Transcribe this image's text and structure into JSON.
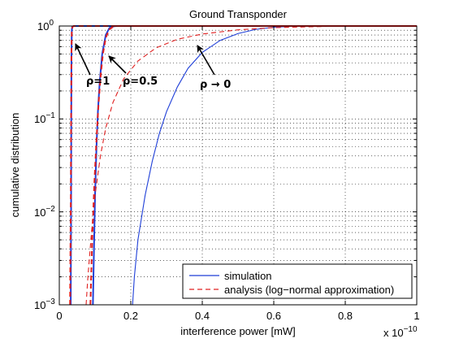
{
  "chart_data": {
    "type": "line",
    "title": "Ground Transponder",
    "xlabel": "interference power [mW]",
    "ylabel": "cumulative distribution",
    "x_multiplier_label": "x 10",
    "x_multiplier_exponent": "−10",
    "xlim": [
      0,
      1
    ],
    "ylim": [
      0.001,
      1
    ],
    "y_scale": "log",
    "grid": true,
    "legend_position": "bottom-right",
    "x_ticks": [
      "0",
      "0.2",
      "0.4",
      "0.6",
      "0.8",
      "1"
    ],
    "y_ticks": [
      {
        "base": "10",
        "exp": "0"
      },
      {
        "base": "10",
        "exp": "−1"
      },
      {
        "base": "10",
        "exp": "−2"
      },
      {
        "base": "10",
        "exp": "−3"
      }
    ],
    "series": [
      {
        "name": "simulation",
        "color": "#1f3fd8",
        "style": "solid",
        "curves": [
          {
            "x": [
              0.032,
              0.033,
              0.0335,
              0.034,
              0.035,
              0.036,
              0.04,
              0.06
            ],
            "y": [
              0.001,
              0.01,
              0.1,
              0.5,
              0.9,
              0.98,
              0.999,
              1.0
            ]
          },
          {
            "x": [
              0.094,
              0.097,
              0.1,
              0.104,
              0.108,
              0.113,
              0.12,
              0.13,
              0.14,
              0.15,
              0.16
            ],
            "y": [
              0.001,
              0.004,
              0.015,
              0.05,
              0.12,
              0.25,
              0.5,
              0.8,
              0.95,
              0.99,
              1.0
            ]
          },
          {
            "x": [
              0.205,
              0.21,
              0.22,
              0.24,
              0.26,
              0.28,
              0.3,
              0.33,
              0.36,
              0.4,
              0.45,
              0.5,
              0.55,
              0.6,
              0.65,
              0.7
            ],
            "y": [
              0.001,
              0.002,
              0.005,
              0.015,
              0.035,
              0.07,
              0.12,
              0.22,
              0.35,
              0.52,
              0.7,
              0.83,
              0.92,
              0.97,
              0.99,
              1.0
            ]
          }
        ]
      },
      {
        "name": "analysis (log−normal approximation)",
        "color": "#e02020",
        "style": "dashed",
        "curves": [
          {
            "x": [
              0.03,
              0.032,
              0.033,
              0.034,
              0.035,
              0.037,
              0.04,
              0.05
            ],
            "y": [
              0.001,
              0.01,
              0.1,
              0.5,
              0.9,
              0.98,
              0.999,
              1.0
            ]
          },
          {
            "x": [
              0.087,
              0.092,
              0.098,
              0.104,
              0.11,
              0.116,
              0.122,
              0.13,
              0.14,
              0.15,
              0.16
            ],
            "y": [
              0.001,
              0.005,
              0.02,
              0.06,
              0.15,
              0.3,
              0.5,
              0.75,
              0.92,
              0.98,
              1.0
            ]
          },
          {
            "x": [
              0.075,
              0.08,
              0.09,
              0.1,
              0.115,
              0.13,
              0.15,
              0.18,
              0.22,
              0.27,
              0.33,
              0.4,
              0.5,
              0.6,
              0.75,
              0.9,
              1.0
            ],
            "y": [
              0.001,
              0.002,
              0.006,
              0.015,
              0.04,
              0.08,
              0.15,
              0.27,
              0.42,
              0.58,
              0.72,
              0.82,
              0.91,
              0.96,
              0.99,
              0.998,
              1.0
            ]
          }
        ]
      }
    ],
    "annotations": [
      {
        "text": "ρ=1",
        "arrow_to": [
          0.04,
          0.97
        ]
      },
      {
        "text": "ρ=0.5",
        "arrow_to": [
          0.125,
          0.75
        ]
      },
      {
        "text": "ρ → 0",
        "arrow_to": [
          0.36,
          0.62
        ]
      }
    ]
  }
}
